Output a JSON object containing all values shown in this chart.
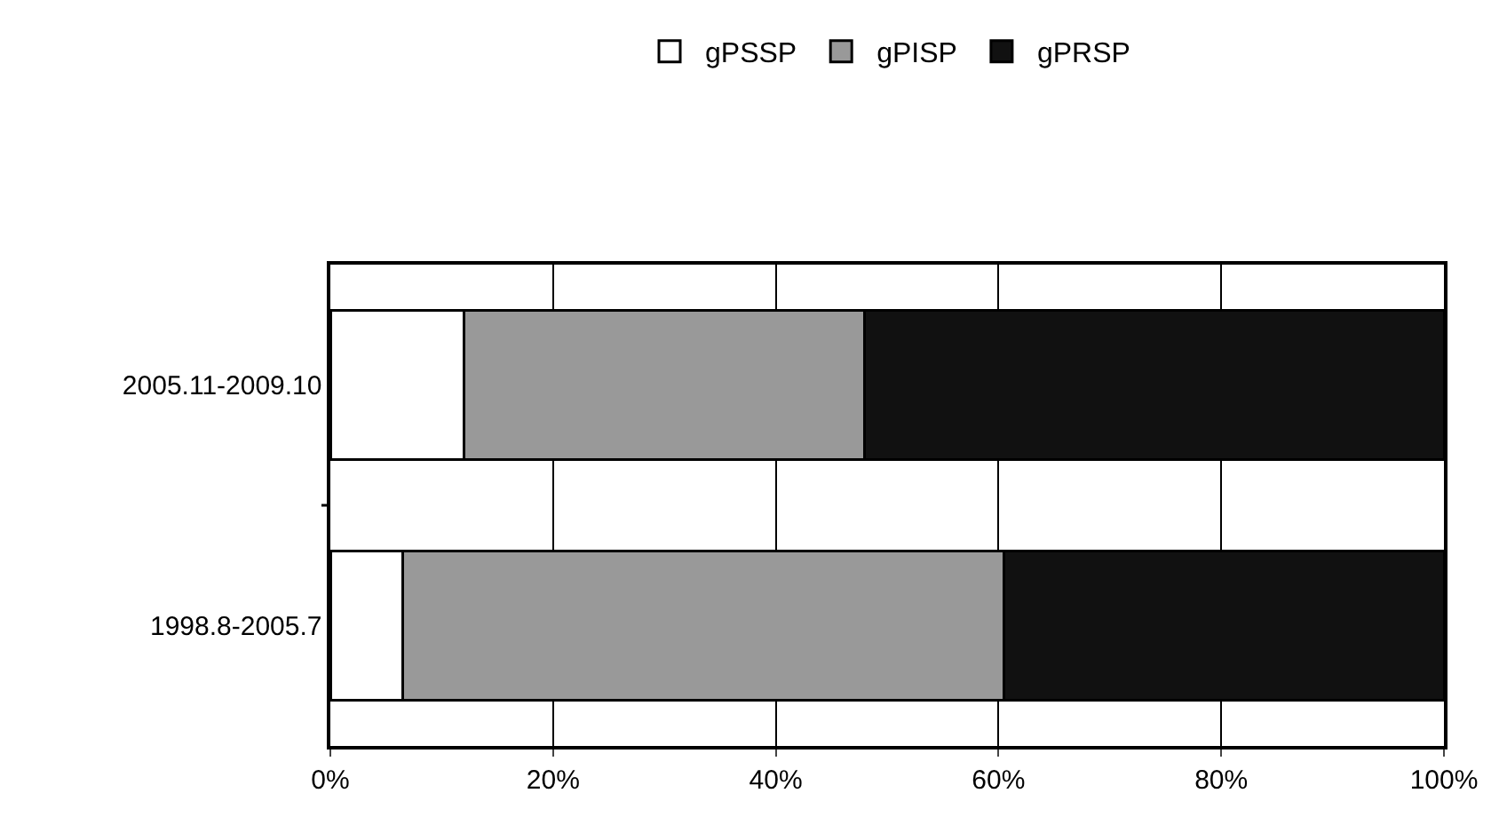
{
  "chart_data": {
    "type": "bar",
    "orientation": "horizontal",
    "stacked": true,
    "categories": [
      "2005.11-2009.10",
      "1998.8-2005.7"
    ],
    "series": [
      {
        "name": "gPSSP",
        "color": "#ffffff",
        "values": [
          12,
          6.5
        ]
      },
      {
        "name": "gPISP",
        "color": "#999999",
        "values": [
          36,
          54
        ]
      },
      {
        "name": "gPRSP",
        "color": "#111111",
        "values": [
          52,
          39.5
        ]
      }
    ],
    "xlim": [
      0,
      100
    ],
    "xticks": [
      {
        "value": 0,
        "label": "0%"
      },
      {
        "value": 20,
        "label": "20%"
      },
      {
        "value": 40,
        "label": "40%"
      },
      {
        "value": 60,
        "label": "60%"
      },
      {
        "value": 80,
        "label": "80%"
      },
      {
        "value": 100,
        "label": "100%"
      }
    ],
    "grid": "x",
    "legend": "top"
  }
}
